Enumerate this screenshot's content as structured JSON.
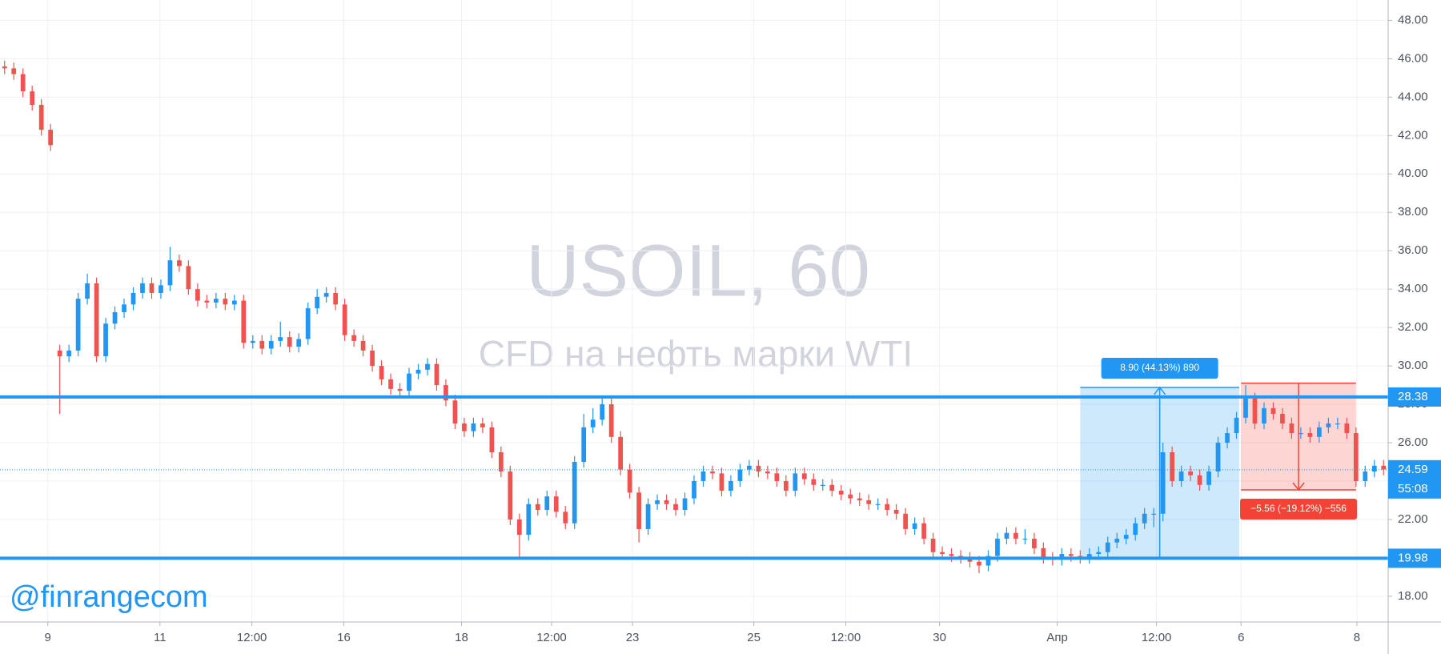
{
  "chart_data": {
    "type": "candlestick",
    "watermark_symbol": "USOIL, 60",
    "watermark_description": "CFD на нефть марки WTI",
    "brand": "@finrangecom",
    "up_color": "#2196f3",
    "down_color": "#ef5350",
    "grid": true,
    "x": [
      0,
      1,
      2,
      3,
      4,
      5,
      6,
      7,
      8,
      9,
      10,
      11,
      12,
      13,
      14,
      15,
      16,
      17,
      18,
      19,
      20,
      21,
      22,
      23,
      24,
      25,
      26,
      27,
      28,
      29,
      30,
      31,
      32,
      33,
      34,
      35,
      36,
      37,
      38,
      39,
      40,
      41,
      42,
      43,
      44,
      45,
      46,
      47,
      48,
      49,
      50,
      51,
      52,
      53,
      54,
      55,
      56,
      57,
      58,
      59,
      60,
      61,
      62,
      63,
      64,
      65,
      66,
      67,
      68,
      69,
      70,
      71,
      72,
      73,
      74,
      75,
      76,
      77,
      78,
      79,
      80,
      81,
      82,
      83,
      84,
      85,
      86,
      87,
      88,
      89,
      90,
      91,
      92,
      93,
      94,
      95,
      96,
      97,
      98,
      99,
      100,
      101,
      102,
      103,
      104,
      105,
      106,
      107,
      108,
      109,
      110,
      111,
      112,
      113,
      114,
      115,
      116,
      117,
      118,
      119,
      120,
      121,
      122,
      123,
      124,
      125,
      126,
      127,
      128,
      129,
      130,
      131,
      132,
      133,
      134,
      135,
      136,
      137,
      138,
      139,
      140,
      141,
      142,
      143,
      144,
      145,
      146,
      147,
      148,
      149,
      150
    ],
    "open": [
      45.6,
      45.5,
      45.2,
      44.3,
      43.6,
      42.3,
      30.8,
      30.5,
      30.8,
      33.5,
      34.3,
      30.5,
      32.2,
      32.8,
      33.2,
      33.8,
      34.3,
      33.8,
      34.2,
      35.5,
      35.2,
      34.0,
      33.4,
      33.3,
      33.5,
      33.2,
      33.4,
      31.2,
      31.3,
      30.9,
      31.3,
      31.5,
      31.0,
      31.4,
      33.0,
      33.6,
      33.8,
      33.2,
      31.6,
      31.3,
      30.8,
      30.0,
      29.3,
      28.8,
      28.7,
      29.6,
      29.8,
      30.1,
      29.0,
      28.2,
      27.0,
      26.6,
      27.0,
      26.8,
      25.5,
      24.5,
      22.0,
      21.2,
      22.8,
      22.5,
      23.2,
      22.4,
      21.8,
      25.0,
      26.8,
      27.2,
      28.0,
      26.3,
      24.6,
      23.4,
      21.5,
      22.8,
      23.0,
      22.8,
      22.5,
      23.1,
      24.0,
      24.5,
      24.4,
      23.5,
      24.0,
      24.6,
      24.8,
      24.5,
      24.4,
      24.0,
      23.5,
      24.4,
      24.1,
      23.8,
      23.8,
      23.5,
      23.3,
      23.1,
      23.0,
      22.8,
      22.8,
      22.5,
      22.3,
      21.5,
      21.8,
      21.0,
      20.3,
      20.2,
      20.1,
      20.0,
      19.8,
      19.6,
      20.1,
      21.0,
      21.3,
      21.0,
      21.0,
      20.5,
      20.0,
      19.9,
      20.2,
      20.1,
      20.0,
      20.2,
      20.3,
      20.8,
      21.0,
      21.2,
      21.8,
      22.3,
      22.3,
      25.5,
      24.0,
      24.5,
      24.3,
      23.8,
      24.5,
      26.0,
      26.5,
      27.3,
      28.3,
      27.0,
      27.8,
      27.5,
      27.0,
      26.5,
      26.5,
      26.3,
      26.8,
      27.0,
      27.0,
      26.5,
      24.0,
      24.5,
      24.8
    ],
    "high": [
      45.9,
      45.8,
      45.5,
      44.6,
      43.9,
      42.6,
      31.1,
      31.1,
      33.8,
      34.8,
      34.6,
      32.5,
      33.1,
      33.5,
      34.1,
      34.6,
      34.6,
      34.5,
      36.2,
      35.8,
      35.5,
      34.3,
      33.7,
      33.8,
      33.8,
      33.7,
      33.7,
      31.6,
      31.6,
      31.6,
      32.3,
      31.8,
      31.7,
      33.3,
      34.0,
      34.1,
      34.1,
      33.5,
      31.9,
      31.6,
      31.1,
      30.3,
      29.6,
      29.1,
      29.9,
      30.1,
      30.4,
      30.4,
      29.3,
      28.5,
      27.3,
      27.3,
      27.3,
      27.1,
      25.8,
      24.8,
      22.3,
      23.1,
      23.1,
      23.5,
      23.5,
      22.7,
      25.3,
      27.5,
      27.8,
      28.4,
      28.3,
      26.6,
      24.9,
      23.7,
      23.1,
      23.3,
      23.3,
      23.1,
      23.4,
      24.3,
      24.8,
      24.8,
      24.7,
      24.3,
      24.9,
      25.1,
      25.1,
      24.8,
      24.7,
      24.3,
      24.7,
      24.7,
      24.4,
      24.1,
      24.1,
      23.8,
      23.6,
      23.4,
      23.3,
      23.1,
      23.1,
      22.8,
      22.6,
      22.1,
      22.1,
      21.3,
      20.6,
      20.5,
      20.4,
      20.3,
      20.1,
      20.4,
      21.3,
      21.6,
      21.6,
      21.5,
      21.3,
      20.8,
      20.3,
      20.5,
      20.5,
      20.4,
      20.5,
      20.6,
      21.1,
      21.3,
      21.5,
      22.1,
      22.6,
      22.6,
      26.0,
      25.8,
      24.8,
      24.8,
      24.6,
      24.8,
      26.3,
      26.8,
      27.6,
      29.0,
      28.6,
      28.1,
      28.1,
      27.8,
      27.3,
      26.8,
      26.8,
      27.1,
      27.3,
      27.3,
      27.3,
      26.8,
      24.8,
      25.1,
      25.1
    ],
    "low": [
      45.2,
      44.9,
      44.0,
      43.3,
      42.0,
      41.2,
      27.5,
      30.2,
      30.5,
      33.2,
      30.2,
      30.2,
      31.9,
      32.5,
      32.9,
      33.5,
      33.5,
      33.5,
      33.9,
      34.9,
      33.7,
      33.1,
      33.0,
      33.0,
      32.9,
      32.9,
      30.9,
      30.9,
      30.6,
      30.6,
      31.0,
      30.7,
      30.7,
      31.1,
      32.7,
      33.3,
      32.9,
      31.3,
      31.0,
      30.5,
      29.7,
      29.0,
      28.5,
      28.4,
      28.4,
      29.3,
      29.5,
      28.7,
      27.9,
      26.7,
      26.3,
      26.3,
      26.5,
      25.2,
      24.2,
      21.7,
      20.0,
      20.9,
      22.2,
      22.2,
      22.1,
      21.5,
      21.5,
      24.7,
      26.5,
      26.9,
      26.0,
      24.3,
      23.1,
      20.8,
      21.2,
      22.5,
      22.5,
      22.2,
      22.2,
      22.8,
      23.7,
      24.1,
      23.2,
      23.2,
      23.7,
      24.3,
      24.2,
      24.1,
      23.7,
      23.2,
      23.2,
      23.8,
      23.5,
      23.5,
      23.2,
      23.0,
      22.8,
      22.7,
      22.5,
      22.5,
      22.2,
      22.0,
      21.2,
      21.2,
      20.7,
      20.0,
      19.9,
      19.8,
      19.7,
      19.5,
      19.2,
      19.3,
      19.8,
      20.7,
      20.7,
      20.7,
      20.2,
      19.7,
      19.6,
      19.6,
      19.8,
      19.7,
      19.7,
      19.9,
      20.0,
      20.5,
      20.7,
      20.9,
      21.5,
      21.6,
      21.9,
      23.7,
      23.7,
      24.0,
      23.5,
      23.5,
      24.2,
      25.7,
      26.2,
      27.0,
      26.7,
      26.7,
      27.2,
      26.7,
      26.2,
      26.2,
      26.0,
      26.0,
      26.5,
      26.7,
      26.2,
      23.7,
      23.7,
      24.2,
      24.3
    ],
    "close": [
      45.5,
      45.2,
      44.3,
      43.6,
      42.3,
      41.5,
      30.5,
      30.8,
      33.5,
      34.3,
      30.5,
      32.2,
      32.8,
      33.2,
      33.8,
      34.3,
      33.8,
      34.2,
      35.5,
      35.2,
      34.0,
      33.4,
      33.3,
      33.5,
      33.2,
      33.4,
      31.2,
      31.3,
      30.9,
      31.3,
      31.5,
      31.0,
      31.4,
      33.0,
      33.6,
      33.8,
      33.2,
      31.6,
      31.3,
      30.8,
      30.0,
      29.3,
      28.8,
      28.7,
      29.6,
      29.8,
      30.1,
      29.0,
      28.2,
      27.0,
      26.6,
      27.0,
      26.8,
      25.5,
      24.5,
      22.0,
      21.2,
      22.8,
      22.5,
      23.2,
      22.4,
      21.8,
      25.0,
      26.8,
      27.2,
      28.0,
      26.3,
      24.6,
      23.4,
      21.5,
      22.8,
      23.0,
      22.8,
      22.5,
      23.1,
      24.0,
      24.5,
      24.4,
      23.5,
      24.0,
      24.6,
      24.8,
      24.5,
      24.4,
      24.0,
      23.5,
      24.4,
      24.1,
      23.8,
      23.8,
      23.5,
      23.3,
      23.1,
      23.0,
      22.8,
      22.8,
      22.5,
      22.3,
      21.5,
      21.8,
      21.0,
      20.3,
      20.2,
      20.1,
      20.0,
      19.8,
      19.6,
      20.1,
      21.0,
      21.3,
      21.0,
      21.0,
      20.5,
      20.0,
      19.9,
      20.2,
      20.1,
      20.0,
      20.2,
      20.3,
      20.8,
      21.0,
      21.2,
      21.8,
      22.3,
      22.3,
      25.5,
      24.0,
      24.5,
      24.3,
      23.8,
      24.5,
      26.0,
      26.5,
      27.3,
      28.3,
      27.0,
      27.8,
      27.5,
      27.0,
      26.5,
      26.5,
      26.3,
      26.8,
      27.0,
      27.0,
      26.5,
      24.0,
      24.5,
      24.8,
      24.6
    ],
    "xlim": [
      -0.5,
      150.5
    ],
    "xticks": [
      {
        "value": 4.7,
        "label": "9"
      },
      {
        "value": 16.9,
        "label": "11"
      },
      {
        "value": 26.9,
        "label": "12:00"
      },
      {
        "value": 36.9,
        "label": "16"
      },
      {
        "value": 49.7,
        "label": "18"
      },
      {
        "value": 59.5,
        "label": "12:00"
      },
      {
        "value": 68.3,
        "label": "23"
      },
      {
        "value": 81.5,
        "label": "25"
      },
      {
        "value": 91.5,
        "label": "12:00"
      },
      {
        "value": 101.7,
        "label": "30"
      },
      {
        "value": 114.5,
        "label": "Апр"
      },
      {
        "value": 125.3,
        "label": "12:00"
      },
      {
        "value": 134.5,
        "label": "6"
      },
      {
        "value": 147.1,
        "label": "8"
      }
    ],
    "ylim": [
      16.66,
      49.06
    ],
    "yticks": [
      {
        "value": 18,
        "label": "18.00"
      },
      {
        "value": 20,
        "label": "20.00"
      },
      {
        "value": 22,
        "label": "22.00"
      },
      {
        "value": 24,
        "label": "24.00"
      },
      {
        "value": 26,
        "label": "26.00"
      },
      {
        "value": 28,
        "label": "28.00"
      },
      {
        "value": 30,
        "label": "30.00"
      },
      {
        "value": 32,
        "label": "32.00"
      },
      {
        "value": 34,
        "label": "34.00"
      },
      {
        "value": 36,
        "label": "36.00"
      },
      {
        "value": 38,
        "label": "38.00"
      },
      {
        "value": 40,
        "label": "40.00"
      },
      {
        "value": 42,
        "label": "42.00"
      },
      {
        "value": 44,
        "label": "44.00"
      },
      {
        "value": 46,
        "label": "46.00"
      },
      {
        "value": 48,
        "label": "48.00"
      }
    ],
    "levels": [
      {
        "value": 28.38,
        "label": "28.38",
        "color": "#2196f3"
      },
      {
        "value": 19.98,
        "label": "19.98",
        "color": "#2196f3"
      }
    ],
    "last_price": {
      "value": 24.59,
      "label": "24.59",
      "countdown": "55:08",
      "color": "#2196f3"
    },
    "measures": [
      {
        "x": [
          117,
          134.3
        ],
        "y": [
          19.98,
          28.88
        ],
        "label": "8.90 (44.13%) 890",
        "color": "#2196f3"
      },
      {
        "x": [
          134.5,
          147
        ],
        "y": [
          29.1,
          23.54
        ],
        "label": "−5.56 (−19.12%) −556",
        "color": "#f44336"
      }
    ]
  }
}
